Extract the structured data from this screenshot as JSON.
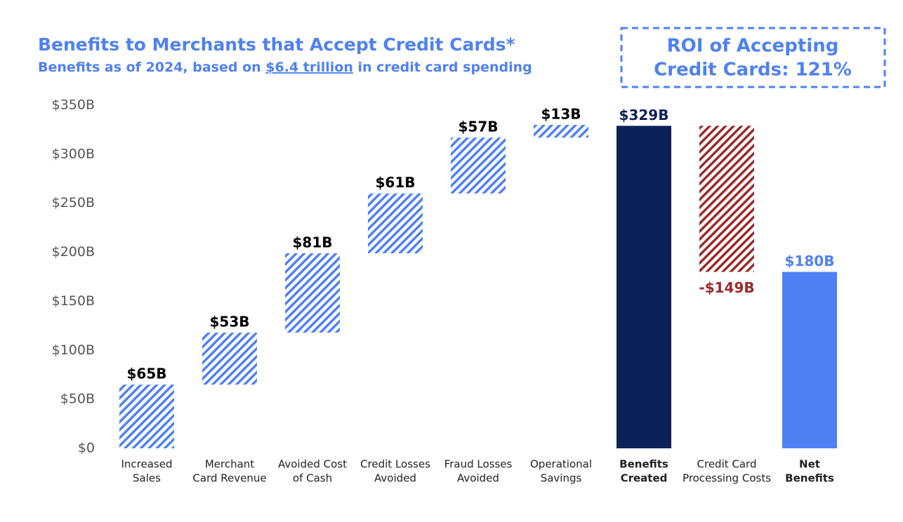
{
  "chart_data": {
    "type": "waterfall",
    "title": "Benefits to Merchants that Accept Credit Cards*",
    "subtitle": [
      "Benefits as of 2024, based on ",
      "$6.4 trillion",
      " in credit card spending"
    ],
    "annotation": [
      "ROI of Accepting",
      "Credit Cards: 121%"
    ],
    "categories": [
      [
        "Increased",
        "Sales"
      ],
      [
        "Merchant",
        "Card Revenue"
      ],
      [
        "Avoided Cost",
        "of Cash"
      ],
      [
        "Credit Losses",
        "Avoided"
      ],
      [
        "Fraud Losses",
        "Avoided"
      ],
      [
        "Operational",
        "Savings"
      ],
      [
        "Benefits",
        "Created"
      ],
      [
        "Credit Card",
        "Processing Costs"
      ],
      [
        "Net",
        "Benefits"
      ]
    ],
    "values": [
      65,
      53,
      81,
      61,
      57,
      13,
      329,
      -149,
      180
    ],
    "value_labels": [
      "$65B",
      "$53B",
      "$81B",
      "$61B",
      "$57B",
      "$13B",
      "$329B",
      "-$149B",
      "$180B"
    ],
    "kinds": [
      "increase",
      "increase",
      "increase",
      "increase",
      "increase",
      "increase",
      "total",
      "decrease",
      "total"
    ],
    "colors": [
      "#4f81f0",
      "#4f81f0",
      "#4f81f0",
      "#4f81f0",
      "#4f81f0",
      "#4f81f0",
      "#0b2259",
      "#9b2a2a",
      "#4f81f5"
    ],
    "label_colors": [
      "#000000",
      "#000000",
      "#000000",
      "#000000",
      "#000000",
      "#000000",
      "#0b2259",
      "#9b2a2a",
      "#4f81f5"
    ],
    "ylim": [
      0,
      350
    ],
    "yticks": [
      {
        "value": 0,
        "label": "$0"
      },
      {
        "value": 50,
        "label": "$50B"
      },
      {
        "value": 100,
        "label": "$100B"
      },
      {
        "value": 150,
        "label": "$150B"
      },
      {
        "value": 200,
        "label": "$200B"
      },
      {
        "value": 250,
        "label": "$250B"
      },
      {
        "value": 300,
        "label": "$300B"
      },
      {
        "value": 350,
        "label": "$350B"
      }
    ],
    "grid": false
  }
}
